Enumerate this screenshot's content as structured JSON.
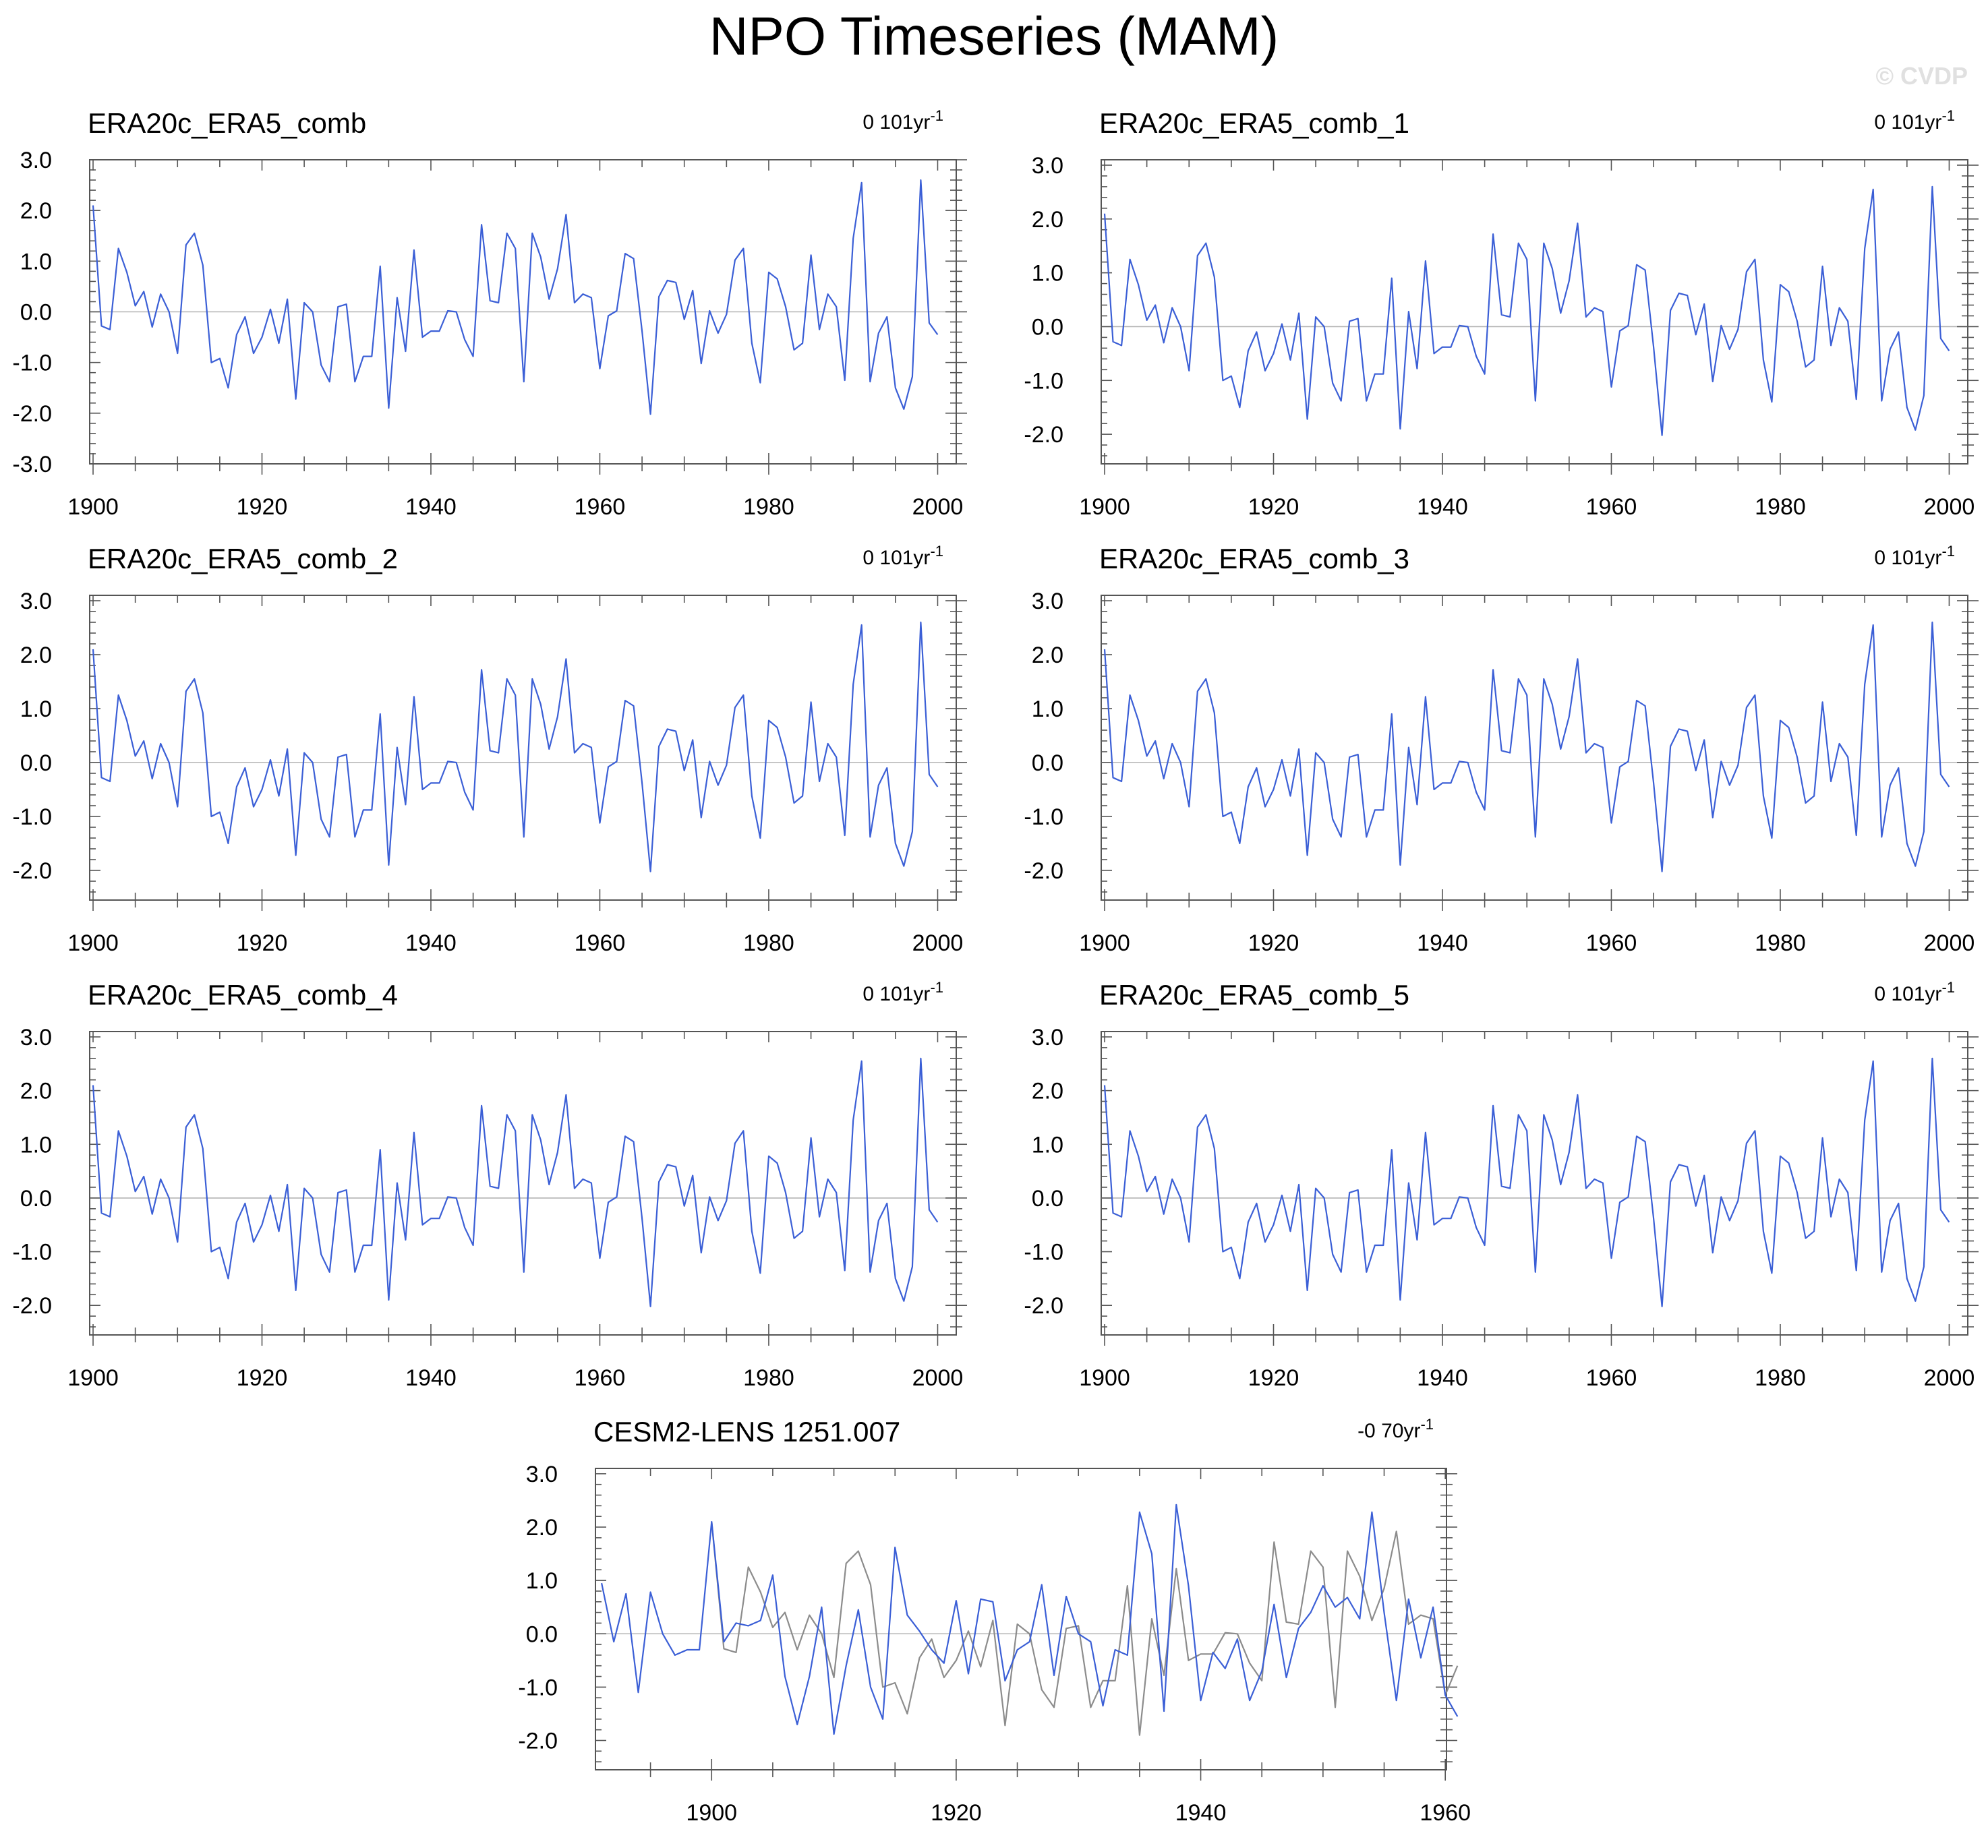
{
  "title": "NPO Timeseries (MAM)",
  "watermark": "© CVDP",
  "colors": {
    "primary": "#3b5fd6",
    "reference": "#8c8c8c",
    "zero_line": "#b4b4b4",
    "frame": "#555555"
  },
  "chart_data": [
    {
      "type": "line",
      "title": "ERA20c_ERA5_comb",
      "trend_label": "0 101yr",
      "trend_exp": "-1",
      "xlim": [
        1900,
        2000
      ],
      "xticks": [
        "1900",
        "1920",
        "1940",
        "1960",
        "1980",
        "2000"
      ],
      "ylim": [
        -3,
        3
      ],
      "yticks": [
        "3.0",
        "2.0",
        "1.0",
        "0.0",
        "-1.0",
        "-2.0",
        "-3.0"
      ],
      "x_start": 1900,
      "series": [
        {
          "values": [
            2.1,
            -0.28,
            -0.35,
            1.25,
            0.78,
            0.12,
            0.4,
            -0.3,
            0.35,
            0.0,
            -0.82,
            1.32,
            1.55,
            0.92,
            -1.0,
            -0.92,
            -1.5,
            -0.45,
            -0.1,
            -0.82,
            -0.5,
            0.05,
            -0.62,
            0.25,
            -1.72,
            0.18,
            0.0,
            -1.05,
            -1.38,
            0.1,
            0.15,
            -1.38,
            -0.88,
            -0.88,
            0.9,
            -1.9,
            0.28,
            -0.78,
            1.22,
            -0.5,
            -0.38,
            -0.38,
            0.02,
            0.0,
            -0.55,
            -0.88,
            1.72,
            0.22,
            0.18,
            1.55,
            1.25,
            -1.38,
            1.55,
            1.08,
            0.25,
            0.85,
            1.92,
            0.18,
            0.35,
            0.28,
            -1.12,
            -0.08,
            0.02,
            1.15,
            1.05,
            -0.38,
            -2.02,
            0.3,
            0.62,
            0.58,
            -0.15,
            0.42,
            -1.02,
            0.02,
            -0.42,
            -0.05,
            1.02,
            1.25,
            -0.62,
            -1.4,
            0.78,
            0.65,
            0.1,
            -0.75,
            -0.62,
            1.12,
            -0.35,
            0.35,
            0.1,
            -1.35,
            1.45,
            2.55,
            -1.38,
            -0.42,
            -0.1,
            -1.5,
            -1.92,
            -1.28,
            2.6,
            -0.22,
            -0.45
          ]
        }
      ]
    },
    {
      "type": "line",
      "title": "ERA20c_ERA5_comb_1",
      "trend_label": "0 101yr",
      "trend_exp": "-1",
      "xlim": [
        1900,
        2000
      ],
      "xticks": [
        "1900",
        "1920",
        "1940",
        "1960",
        "1980",
        "2000"
      ],
      "ylim": [
        -2.5,
        3.1
      ],
      "yticks": [
        "3.0",
        "2.0",
        "1.0",
        "0.0",
        "-1.0",
        "-2.0"
      ],
      "x_start": 1900,
      "series": [
        {
          "values": [
            2.1,
            -0.28,
            -0.35,
            1.25,
            0.78,
            0.12,
            0.4,
            -0.3,
            0.35,
            0.0,
            -0.82,
            1.32,
            1.55,
            0.92,
            -1.0,
            -0.92,
            -1.5,
            -0.45,
            -0.1,
            -0.82,
            -0.5,
            0.05,
            -0.62,
            0.25,
            -1.72,
            0.18,
            0.0,
            -1.05,
            -1.38,
            0.1,
            0.15,
            -1.38,
            -0.88,
            -0.88,
            0.9,
            -1.9,
            0.28,
            -0.78,
            1.22,
            -0.5,
            -0.38,
            -0.38,
            0.02,
            0.0,
            -0.55,
            -0.88,
            1.72,
            0.22,
            0.18,
            1.55,
            1.25,
            -1.38,
            1.55,
            1.08,
            0.25,
            0.85,
            1.92,
            0.18,
            0.35,
            0.28,
            -1.12,
            -0.08,
            0.02,
            1.15,
            1.05,
            -0.38,
            -2.02,
            0.3,
            0.62,
            0.58,
            -0.15,
            0.42,
            -1.02,
            0.02,
            -0.42,
            -0.05,
            1.02,
            1.25,
            -0.62,
            -1.4,
            0.78,
            0.65,
            0.1,
            -0.75,
            -0.62,
            1.12,
            -0.35,
            0.35,
            0.1,
            -1.35,
            1.45,
            2.55,
            -1.38,
            -0.42,
            -0.1,
            -1.5,
            -1.92,
            -1.28,
            2.6,
            -0.22,
            -0.45
          ]
        }
      ]
    },
    {
      "type": "line",
      "title": "ERA20c_ERA5_comb_2",
      "trend_label": "0 101yr",
      "trend_exp": "-1",
      "xlim": [
        1900,
        2000
      ],
      "xticks": [
        "1900",
        "1920",
        "1940",
        "1960",
        "1980",
        "2000"
      ],
      "ylim": [
        -2.5,
        3.1
      ],
      "yticks": [
        "3.0",
        "2.0",
        "1.0",
        "0.0",
        "-1.0",
        "-2.0"
      ],
      "x_start": 1900,
      "series": [
        {
          "values": [
            2.1,
            -0.28,
            -0.35,
            1.25,
            0.78,
            0.12,
            0.4,
            -0.3,
            0.35,
            0.0,
            -0.82,
            1.32,
            1.55,
            0.92,
            -1.0,
            -0.92,
            -1.5,
            -0.45,
            -0.1,
            -0.82,
            -0.5,
            0.05,
            -0.62,
            0.25,
            -1.72,
            0.18,
            0.0,
            -1.05,
            -1.38,
            0.1,
            0.15,
            -1.38,
            -0.88,
            -0.88,
            0.9,
            -1.9,
            0.28,
            -0.78,
            1.22,
            -0.5,
            -0.38,
            -0.38,
            0.02,
            0.0,
            -0.55,
            -0.88,
            1.72,
            0.22,
            0.18,
            1.55,
            1.25,
            -1.38,
            1.55,
            1.08,
            0.25,
            0.85,
            1.92,
            0.18,
            0.35,
            0.28,
            -1.12,
            -0.08,
            0.02,
            1.15,
            1.05,
            -0.38,
            -2.02,
            0.3,
            0.62,
            0.58,
            -0.15,
            0.42,
            -1.02,
            0.02,
            -0.42,
            -0.05,
            1.02,
            1.25,
            -0.62,
            -1.4,
            0.78,
            0.65,
            0.1,
            -0.75,
            -0.62,
            1.12,
            -0.35,
            0.35,
            0.1,
            -1.35,
            1.45,
            2.55,
            -1.38,
            -0.42,
            -0.1,
            -1.5,
            -1.92,
            -1.28,
            2.6,
            -0.22,
            -0.45
          ]
        }
      ]
    },
    {
      "type": "line",
      "title": "ERA20c_ERA5_comb_3",
      "trend_label": "0 101yr",
      "trend_exp": "-1",
      "xlim": [
        1900,
        2000
      ],
      "xticks": [
        "1900",
        "1920",
        "1940",
        "1960",
        "1980",
        "2000"
      ],
      "ylim": [
        -2.5,
        3.1
      ],
      "yticks": [
        "3.0",
        "2.0",
        "1.0",
        "0.0",
        "-1.0",
        "-2.0"
      ],
      "x_start": 1900,
      "series": [
        {
          "values": [
            2.1,
            -0.28,
            -0.35,
            1.25,
            0.78,
            0.12,
            0.4,
            -0.3,
            0.35,
            0.0,
            -0.82,
            1.32,
            1.55,
            0.92,
            -1.0,
            -0.92,
            -1.5,
            -0.45,
            -0.1,
            -0.82,
            -0.5,
            0.05,
            -0.62,
            0.25,
            -1.72,
            0.18,
            0.0,
            -1.05,
            -1.38,
            0.1,
            0.15,
            -1.38,
            -0.88,
            -0.88,
            0.9,
            -1.9,
            0.28,
            -0.78,
            1.22,
            -0.5,
            -0.38,
            -0.38,
            0.02,
            0.0,
            -0.55,
            -0.88,
            1.72,
            0.22,
            0.18,
            1.55,
            1.25,
            -1.38,
            1.55,
            1.08,
            0.25,
            0.85,
            1.92,
            0.18,
            0.35,
            0.28,
            -1.12,
            -0.08,
            0.02,
            1.15,
            1.05,
            -0.38,
            -2.02,
            0.3,
            0.62,
            0.58,
            -0.15,
            0.42,
            -1.02,
            0.02,
            -0.42,
            -0.05,
            1.02,
            1.25,
            -0.62,
            -1.4,
            0.78,
            0.65,
            0.1,
            -0.75,
            -0.62,
            1.12,
            -0.35,
            0.35,
            0.1,
            -1.35,
            1.45,
            2.55,
            -1.38,
            -0.42,
            -0.1,
            -1.5,
            -1.92,
            -1.28,
            2.6,
            -0.22,
            -0.45
          ]
        }
      ]
    },
    {
      "type": "line",
      "title": "ERA20c_ERA5_comb_4",
      "trend_label": "0 101yr",
      "trend_exp": "-1",
      "xlim": [
        1900,
        2000
      ],
      "xticks": [
        "1900",
        "1920",
        "1940",
        "1960",
        "1980",
        "2000"
      ],
      "ylim": [
        -2.5,
        3.1
      ],
      "yticks": [
        "3.0",
        "2.0",
        "1.0",
        "0.0",
        "-1.0",
        "-2.0"
      ],
      "x_start": 1900,
      "series": [
        {
          "values": [
            2.1,
            -0.28,
            -0.35,
            1.25,
            0.78,
            0.12,
            0.4,
            -0.3,
            0.35,
            0.0,
            -0.82,
            1.32,
            1.55,
            0.92,
            -1.0,
            -0.92,
            -1.5,
            -0.45,
            -0.1,
            -0.82,
            -0.5,
            0.05,
            -0.62,
            0.25,
            -1.72,
            0.18,
            0.0,
            -1.05,
            -1.38,
            0.1,
            0.15,
            -1.38,
            -0.88,
            -0.88,
            0.9,
            -1.9,
            0.28,
            -0.78,
            1.22,
            -0.5,
            -0.38,
            -0.38,
            0.02,
            0.0,
            -0.55,
            -0.88,
            1.72,
            0.22,
            0.18,
            1.55,
            1.25,
            -1.38,
            1.55,
            1.08,
            0.25,
            0.85,
            1.92,
            0.18,
            0.35,
            0.28,
            -1.12,
            -0.08,
            0.02,
            1.15,
            1.05,
            -0.38,
            -2.02,
            0.3,
            0.62,
            0.58,
            -0.15,
            0.42,
            -1.02,
            0.02,
            -0.42,
            -0.05,
            1.02,
            1.25,
            -0.62,
            -1.4,
            0.78,
            0.65,
            0.1,
            -0.75,
            -0.62,
            1.12,
            -0.35,
            0.35,
            0.1,
            -1.35,
            1.45,
            2.55,
            -1.38,
            -0.42,
            -0.1,
            -1.5,
            -1.92,
            -1.28,
            2.6,
            -0.22,
            -0.45
          ]
        }
      ]
    },
    {
      "type": "line",
      "title": "ERA20c_ERA5_comb_5",
      "trend_label": "0 101yr",
      "trend_exp": "-1",
      "xlim": [
        1900,
        2000
      ],
      "xticks": [
        "1900",
        "1920",
        "1940",
        "1960",
        "1980",
        "2000"
      ],
      "ylim": [
        -2.5,
        3.1
      ],
      "yticks": [
        "3.0",
        "2.0",
        "1.0",
        "0.0",
        "-1.0",
        "-2.0"
      ],
      "x_start": 1900,
      "series": [
        {
          "values": [
            2.1,
            -0.28,
            -0.35,
            1.25,
            0.78,
            0.12,
            0.4,
            -0.3,
            0.35,
            0.0,
            -0.82,
            1.32,
            1.55,
            0.92,
            -1.0,
            -0.92,
            -1.5,
            -0.45,
            -0.1,
            -0.82,
            -0.5,
            0.05,
            -0.62,
            0.25,
            -1.72,
            0.18,
            0.0,
            -1.05,
            -1.38,
            0.1,
            0.15,
            -1.38,
            -0.88,
            -0.88,
            0.9,
            -1.9,
            0.28,
            -0.78,
            1.22,
            -0.5,
            -0.38,
            -0.38,
            0.02,
            0.0,
            -0.55,
            -0.88,
            1.72,
            0.22,
            0.18,
            1.55,
            1.25,
            -1.38,
            1.55,
            1.08,
            0.25,
            0.85,
            1.92,
            0.18,
            0.35,
            0.28,
            -1.12,
            -0.08,
            0.02,
            1.15,
            1.05,
            -0.38,
            -2.02,
            0.3,
            0.62,
            0.58,
            -0.15,
            0.42,
            -1.02,
            0.02,
            -0.42,
            -0.05,
            1.02,
            1.25,
            -0.62,
            -1.4,
            0.78,
            0.65,
            0.1,
            -0.75,
            -0.62,
            1.12,
            -0.35,
            0.35,
            0.1,
            -1.35,
            1.45,
            2.55,
            -1.38,
            -0.42,
            -0.1,
            -1.5,
            -1.92,
            -1.28,
            2.6,
            -0.22,
            -0.45
          ]
        }
      ]
    },
    {
      "type": "line",
      "title": "CESM2-LENS 1251.007",
      "trend_label": "-0 70yr",
      "trend_exp": "-1",
      "xlim": [
        1890,
        1960
      ],
      "xticks": [
        "1900",
        "1920",
        "1940",
        "1960"
      ],
      "ylim": [
        -2.5,
        3.1
      ],
      "yticks": [
        "3.0",
        "2.0",
        "1.0",
        "0.0",
        "-1.0",
        "-2.0"
      ],
      "series": [
        {
          "role": "reference",
          "x_start": 1900,
          "values": [
            2.1,
            -0.28,
            -0.35,
            1.25,
            0.78,
            0.12,
            0.4,
            -0.3,
            0.35,
            0.0,
            -0.82,
            1.32,
            1.55,
            0.92,
            -1.0,
            -0.92,
            -1.5,
            -0.45,
            -0.1,
            -0.82,
            -0.5,
            0.05,
            -0.62,
            0.25,
            -1.72,
            0.18,
            0.0,
            -1.05,
            -1.38,
            0.1,
            0.15,
            -1.38,
            -0.88,
            -0.88,
            0.9,
            -1.9,
            0.28,
            -0.78,
            1.22,
            -0.5,
            -0.38,
            -0.38,
            0.02,
            0.0,
            -0.55,
            -0.88,
            1.72,
            0.22,
            0.18,
            1.55,
            1.25,
            -1.38,
            1.55,
            1.08,
            0.25,
            0.85,
            1.92,
            0.18,
            0.35,
            0.28,
            -1.15,
            -0.6
          ]
        },
        {
          "role": "model",
          "x_start": 1891,
          "values": [
            0.95,
            -0.15,
            0.75,
            -1.1,
            0.78,
            0.0,
            -0.4,
            -0.3,
            -0.3,
            2.1,
            -0.15,
            0.2,
            0.15,
            0.25,
            1.1,
            -0.8,
            -1.7,
            -0.8,
            0.5,
            -1.88,
            -0.6,
            0.45,
            -1.0,
            -1.6,
            1.62,
            0.35,
            0.05,
            -0.3,
            -0.55,
            0.62,
            -0.75,
            0.65,
            0.6,
            -0.88,
            -0.3,
            -0.15,
            0.92,
            -0.78,
            0.7,
            0.0,
            -0.15,
            -1.35,
            -0.3,
            -0.4,
            2.28,
            1.5,
            -1.45,
            2.42,
            0.9,
            -1.25,
            -0.35,
            -0.65,
            -0.1,
            -1.25,
            -0.7,
            0.55,
            -0.82,
            0.1,
            0.4,
            0.9,
            0.5,
            0.68,
            0.28,
            2.28,
            0.4,
            -1.25,
            0.65,
            -0.45,
            0.5,
            -1.15,
            -1.55
          ]
        }
      ]
    }
  ]
}
